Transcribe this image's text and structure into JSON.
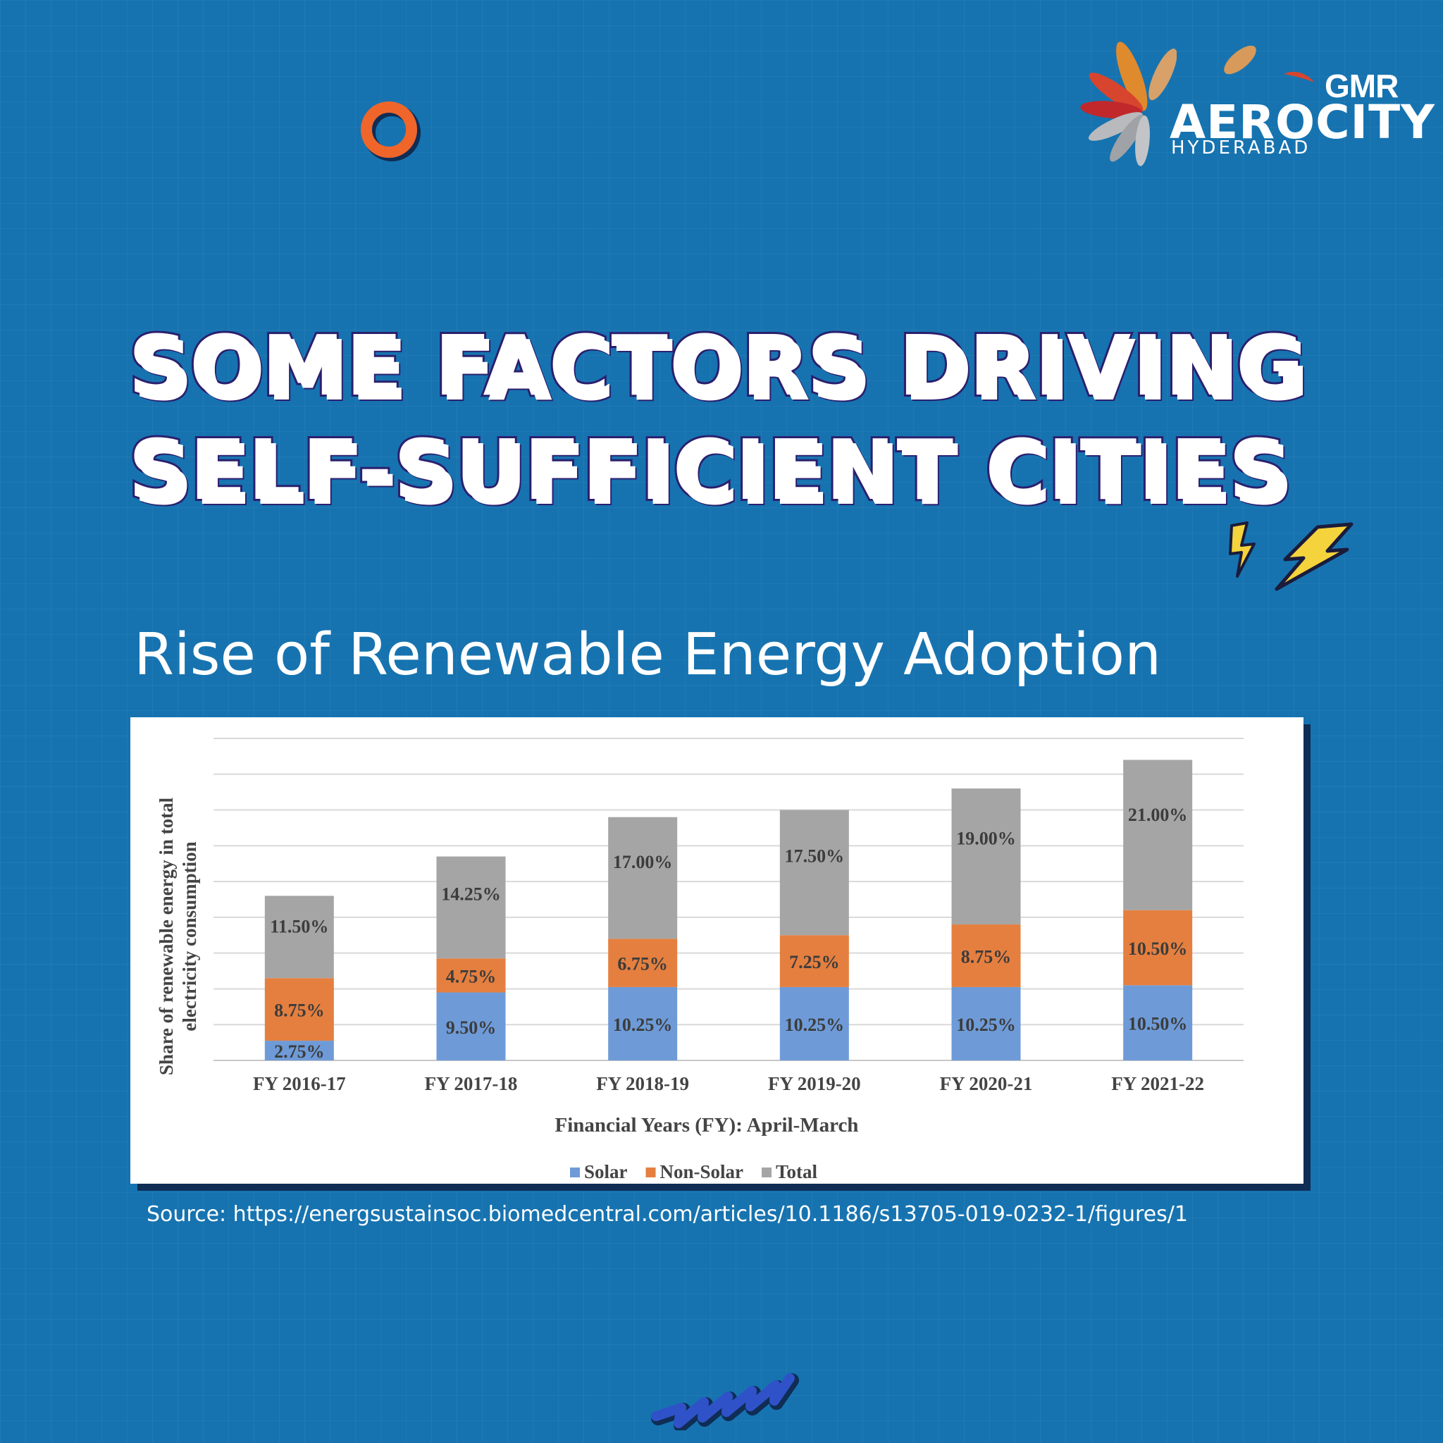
{
  "brand": {
    "gmr": "GMR",
    "name": "AEROCITY",
    "city": "HYDERABAD"
  },
  "headline": {
    "line1": "SOME FACTORS DRIVING",
    "line2": "SELF-SUFFICIENT CITIES"
  },
  "subtitle": "Rise of Renewable Energy Adoption",
  "source": "Source: https://energsustainsoc.biomedcentral.com/articles/10.1186/s13705-019-0232-1/figures/1",
  "colors": {
    "background": "#1673b0",
    "solar": "#6e9bd8",
    "non_solar": "#e57f3f",
    "total": "#a5a5a5",
    "ring": "#f0652a",
    "bolt": "#f5d33c"
  },
  "icons": [
    "ring-icon",
    "lightning-bolt-icon",
    "zigzag-icon",
    "logo-petals-icon"
  ],
  "chart_data": {
    "type": "bar",
    "stacked": true,
    "categories": [
      "FY 2016-17",
      "FY 2017-18",
      "FY 2018-19",
      "FY 2019-20",
      "FY 2020-21",
      "FY 2021-22"
    ],
    "series": [
      {
        "name": "Solar",
        "values": [
          2.75,
          9.5,
          10.25,
          10.25,
          10.25,
          10.5
        ],
        "labels": [
          "2.75%",
          "9.50%",
          "10.25%",
          "10.25%",
          "10.25%",
          "10.50%"
        ]
      },
      {
        "name": "Non-Solar",
        "values": [
          8.75,
          4.75,
          6.75,
          7.25,
          8.75,
          10.5
        ],
        "labels": [
          "8.75%",
          "4.75%",
          "6.75%",
          "7.25%",
          "8.75%",
          "10.50%"
        ]
      },
      {
        "name": "Total",
        "values": [
          11.5,
          14.25,
          17.0,
          17.5,
          19.0,
          21.0
        ],
        "labels": [
          "11.50%",
          "14.25%",
          "17.00%",
          "17.50%",
          "19.00%",
          "21.00%"
        ]
      }
    ],
    "xlabel": "Financial Years (FY): April-March",
    "ylabel": "Share of renewable energy in total electricity consumption",
    "ylim": [
      0,
      45
    ],
    "grid": true,
    "legend_position": "bottom"
  }
}
